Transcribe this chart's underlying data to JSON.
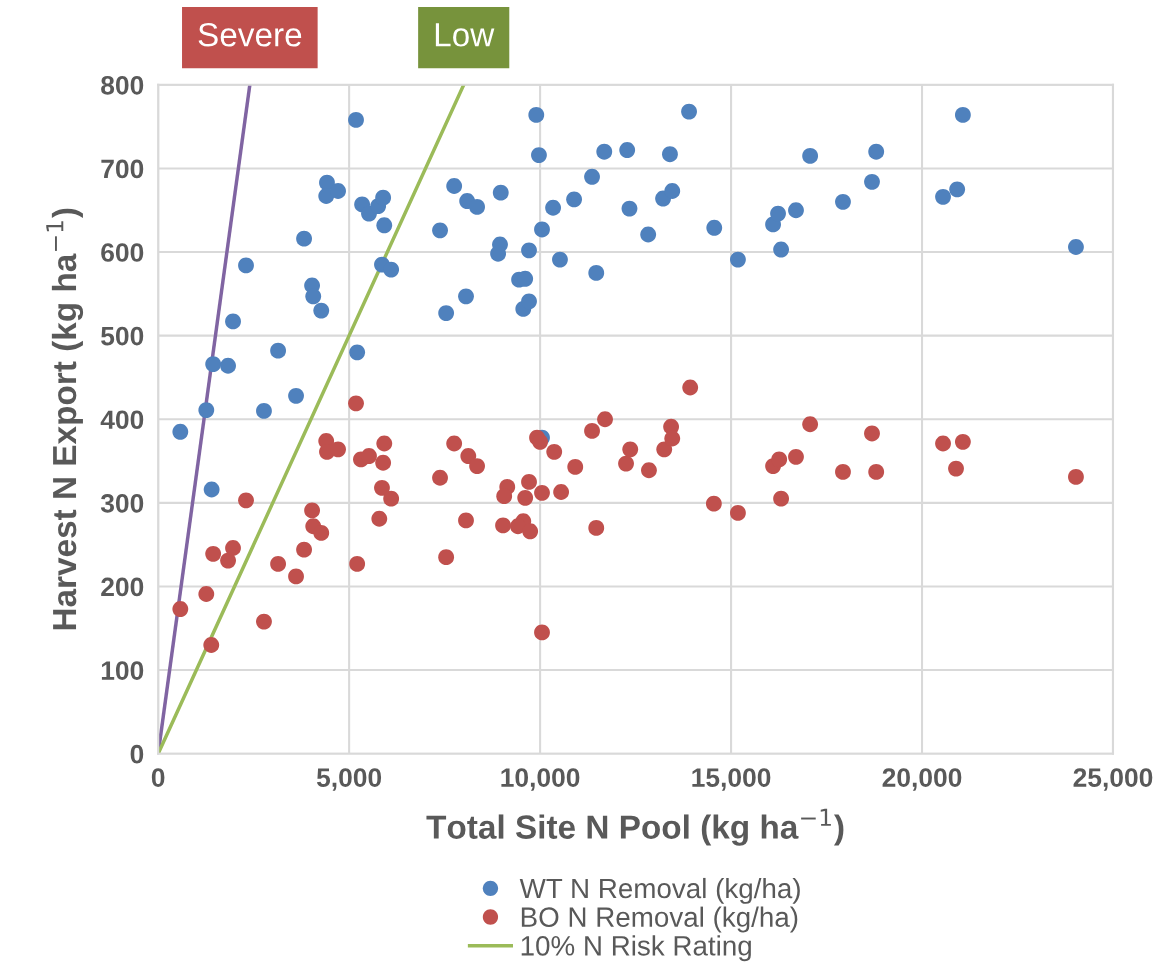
{
  "chart_data": {
    "type": "scatter",
    "xlabel": "Total Site N Pool (kg ha$^{−1}$)",
    "ylabel": "Harvest N Export (kg ha$^{−1}$)",
    "xlim": [
      0,
      25000
    ],
    "xticks": [
      {
        "value": 0,
        "label": "0"
      },
      {
        "value": 5000,
        "label": "5,000"
      },
      {
        "value": 10000,
        "label": "10,000"
      },
      {
        "value": 15000,
        "label": "15,000"
      },
      {
        "value": 20000,
        "label": "20,000"
      },
      {
        "value": 25000,
        "label": "25,000"
      }
    ],
    "ylim": [
      0,
      800
    ],
    "yticks": [
      0,
      100,
      200,
      300,
      400,
      500,
      600,
      700,
      800
    ],
    "grid": true,
    "legend": "bottom",
    "marker": "circle",
    "annotations": [
      {
        "text": "Severe",
        "x": 2400,
        "y": 800
      },
      {
        "text": "Low",
        "x": 8000,
        "y": 800
      }
    ],
    "series": [
      {
        "name": "WT N Removal (kg/ha)",
        "color": "#4f81bd",
        "x": [
          580,
          1260,
          1400,
          1440,
          1830,
          1960,
          2300,
          2770,
          3140,
          3610,
          3820,
          4030,
          4060,
          4270,
          4420,
          4400,
          4710,
          5180,
          5210,
          5340,
          5520,
          5760,
          5890,
          5920,
          5860,
          6100,
          7380,
          7540,
          7750,
          8090,
          8350,
          8060,
          8970,
          8950,
          8900,
          9450,
          9610,
          9560,
          9710,
          9710,
          9900,
          9970,
          10050,
          10050,
          10340,
          10520,
          10890,
          11360,
          11470,
          11680,
          12280,
          12340,
          12830,
          13220,
          13400,
          13460,
          13900,
          14560,
          15180,
          16100,
          16230,
          16310,
          16700,
          17070,
          17930,
          18690,
          18800,
          20550,
          20920,
          21070,
          24030
        ],
        "values": [
          385,
          411,
          316,
          466,
          464,
          517,
          584,
          410,
          482,
          428,
          616,
          560,
          547,
          530,
          683,
          667,
          673,
          758,
          480,
          657,
          646,
          655,
          665,
          632,
          585,
          579,
          626,
          527,
          679,
          661,
          654,
          547,
          671,
          609,
          598,
          567,
          568,
          532,
          541,
          602,
          764,
          716,
          627,
          378,
          653,
          591,
          663,
          690,
          575,
          720,
          722,
          652,
          621,
          664,
          717,
          673,
          768,
          629,
          591,
          633,
          646,
          603,
          650,
          715,
          660,
          684,
          720,
          666,
          675,
          764,
          606
        ]
      },
      {
        "name": "BO N Removal (kg/ha)",
        "color": "#c0504d",
        "x": [
          580,
          1260,
          1390,
          1440,
          1830,
          1960,
          2300,
          2770,
          3140,
          3610,
          3820,
          4030,
          4060,
          4270,
          4400,
          4420,
          4710,
          5180,
          5210,
          5310,
          5520,
          5920,
          5890,
          5860,
          6100,
          5790,
          7380,
          7540,
          7750,
          8120,
          8350,
          8060,
          9140,
          9060,
          9030,
          9710,
          9610,
          9560,
          9420,
          9740,
          9920,
          10000,
          10370,
          10050,
          10550,
          10050,
          10920,
          11360,
          11700,
          11470,
          12250,
          12360,
          12850,
          13250,
          13430,
          13460,
          13930,
          14550,
          15180,
          16100,
          16260,
          16310,
          16700,
          17070,
          17930,
          18690,
          18800,
          20550,
          20890,
          21070,
          24030
        ],
        "values": [
          173,
          191,
          130,
          239,
          231,
          246,
          303,
          158,
          227,
          212,
          244,
          291,
          272,
          264,
          374,
          361,
          364,
          419,
          227,
          352,
          356,
          371,
          348,
          318,
          305,
          281,
          330,
          235,
          371,
          356,
          344,
          279,
          319,
          308,
          273,
          325,
          306,
          278,
          272,
          266,
          378,
          373,
          361,
          312,
          313,
          145,
          343,
          386,
          400,
          270,
          347,
          364,
          339,
          364,
          391,
          377,
          438,
          299,
          288,
          344,
          352,
          305,
          355,
          394,
          337,
          383,
          337,
          371,
          341,
          373,
          331
        ]
      },
      {
        "type": "line",
        "marker": "none",
        "color": "#8064a2",
        "x": [
          0,
          2400
        ],
        "values": [
          0,
          800
        ]
      },
      {
        "name": "10% N Risk Rating",
        "type": "line",
        "marker": "none",
        "color": "#9bbb59",
        "x": [
          0,
          8000
        ],
        "values": [
          0,
          800
        ]
      }
    ]
  }
}
